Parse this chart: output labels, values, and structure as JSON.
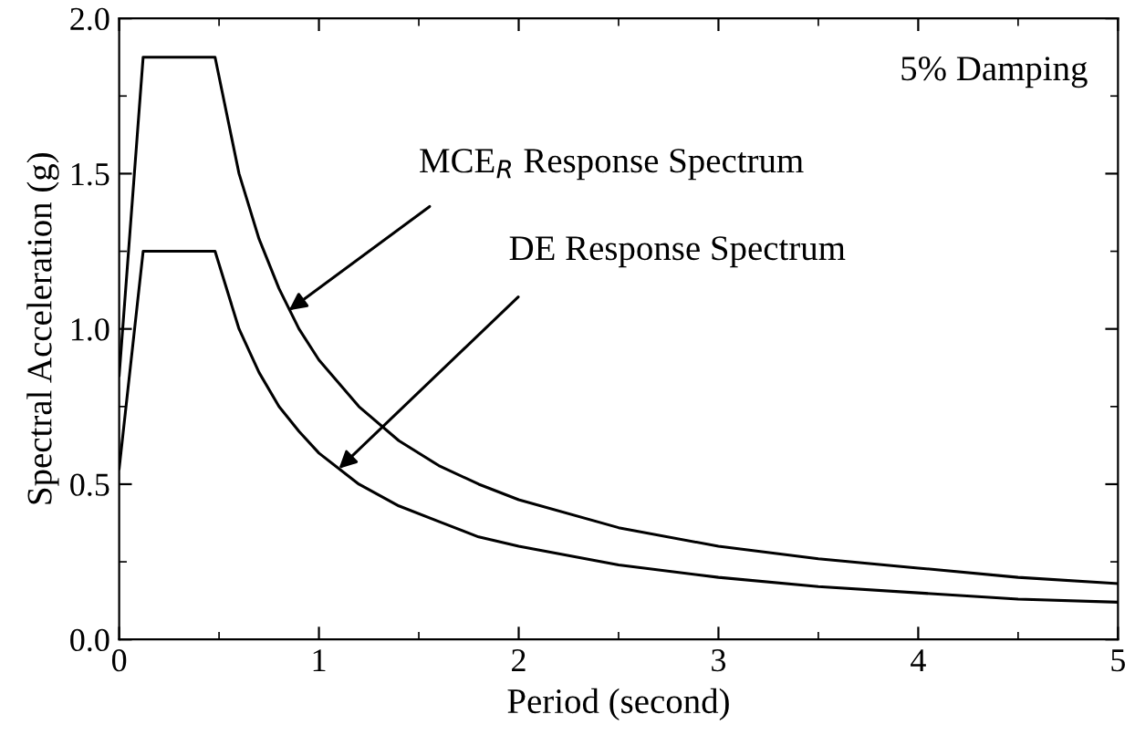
{
  "chart_data": {
    "type": "line",
    "xlabel": "Period (second)",
    "ylabel": "Spectral Acceleration (g)",
    "xlim": [
      0,
      5
    ],
    "ylim": [
      0,
      2.0
    ],
    "xticks": [
      0,
      1,
      2,
      3,
      4,
      5
    ],
    "yticks": [
      {
        "value": 0,
        "label": "0.0"
      },
      0.5,
      {
        "value": 1,
        "label": "1.0"
      },
      1.5,
      {
        "value": 2,
        "label": "2.0"
      }
    ],
    "grid": false,
    "legend": false,
    "marker": "none",
    "line_style": "solid",
    "series": [
      {
        "color": "#000000",
        "x": [
          0,
          0.12,
          0.48,
          0.6,
          0.7,
          0.8,
          0.9,
          1.0,
          1.2,
          1.4,
          1.6,
          1.8,
          2.0,
          2.5,
          3.0,
          3.5,
          4.0,
          4.5,
          5.0
        ],
        "values": [
          0.85,
          1.875,
          1.875,
          1.5,
          1.29,
          1.13,
          1.0,
          0.9,
          0.75,
          0.64,
          0.56,
          0.5,
          0.45,
          0.36,
          0.3,
          0.26,
          0.23,
          0.2,
          0.18
        ]
      },
      {
        "color": "#000000",
        "x": [
          0,
          0.12,
          0.48,
          0.6,
          0.7,
          0.8,
          0.9,
          1.0,
          1.2,
          1.4,
          1.6,
          1.8,
          2.0,
          2.5,
          3.0,
          3.5,
          4.0,
          4.5,
          5.0
        ],
        "values": [
          0.55,
          1.25,
          1.25,
          1.0,
          0.86,
          0.75,
          0.67,
          0.6,
          0.5,
          0.43,
          0.38,
          0.33,
          0.3,
          0.24,
          0.2,
          0.17,
          0.15,
          0.13,
          0.12
        ]
      }
    ],
    "annotations": [
      "5% Damping",
      {
        "text": "MCE$_{R}$ Response Spectrum",
        "x": 0.85,
        "y": 1.06
      },
      {
        "text": "DE Response Spectrum",
        "x": 1.1,
        "y": 0.55
      }
    ]
  }
}
